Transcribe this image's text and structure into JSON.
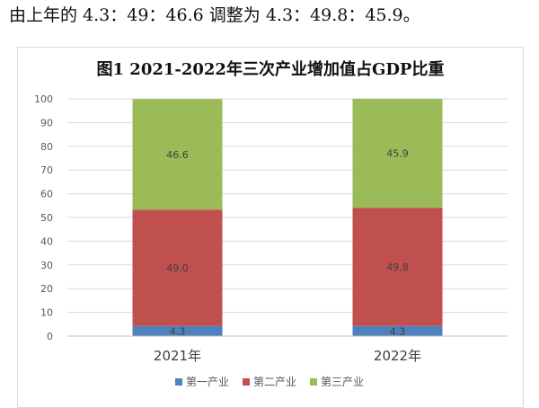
{
  "intro_text": "由上年的 4.3：49：46.6 调整为 4.3：49.8：45.9。",
  "chart_data": {
    "type": "bar",
    "stacked": true,
    "title": "图1  2021-2022年三次产业增加值占GDP比重",
    "categories": [
      "2021年",
      "2022年"
    ],
    "series": [
      {
        "name": "第一产业",
        "color": "#4f81bd",
        "values": [
          4.3,
          4.3
        ],
        "labels": [
          "4.3",
          "4.3"
        ]
      },
      {
        "name": "第二产业",
        "color": "#c0504d",
        "values": [
          49.0,
          49.8
        ],
        "labels": [
          "49.0",
          "49.8"
        ]
      },
      {
        "name": "第三产业",
        "color": "#9bbb59",
        "values": [
          46.6,
          45.9
        ],
        "labels": [
          "46.6",
          "45.9"
        ]
      }
    ],
    "ylim": [
      0,
      100
    ],
    "yticks": [
      "0",
      "10",
      "20",
      "30",
      "40",
      "50",
      "60",
      "70",
      "80",
      "90",
      "100"
    ],
    "grid": true,
    "legend": "bottom"
  }
}
